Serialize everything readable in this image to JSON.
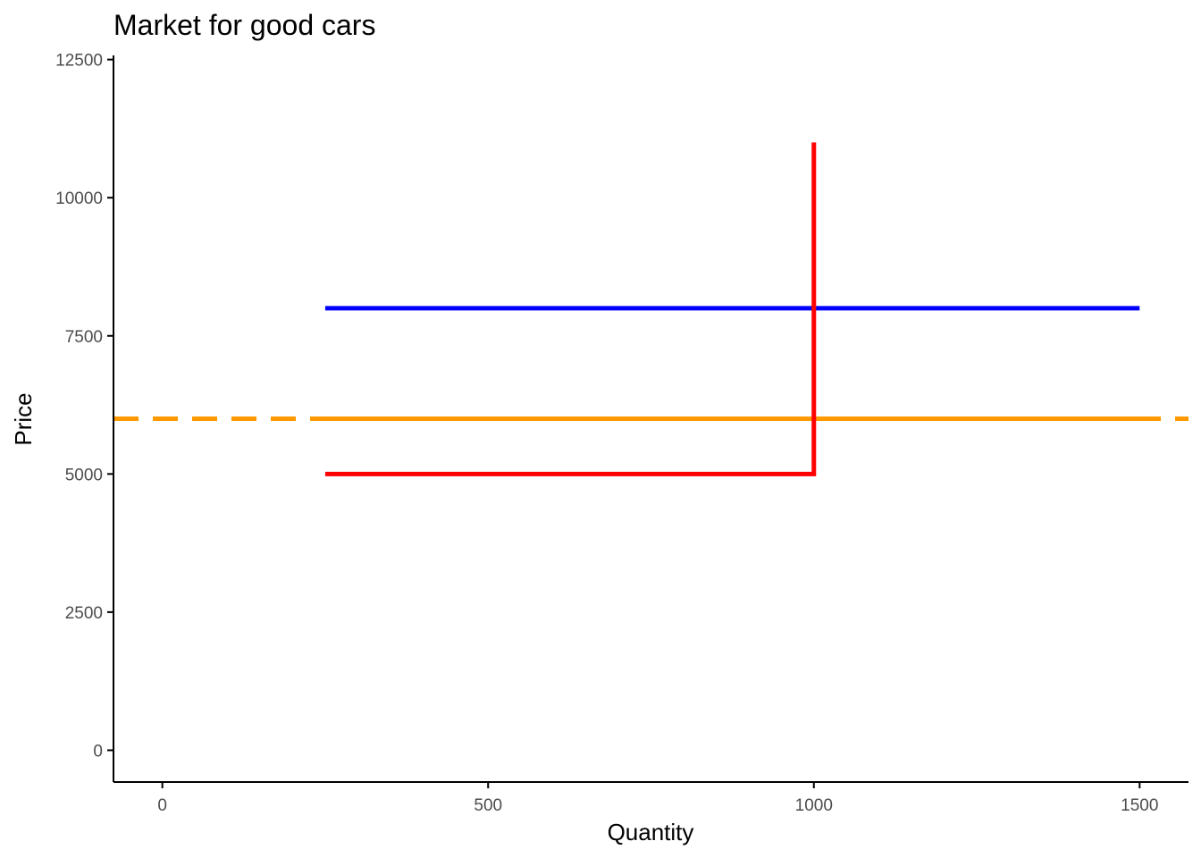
{
  "chart_data": {
    "type": "line",
    "title": "Market for good cars",
    "xlabel": "Quantity",
    "ylabel": "Price",
    "xlim": [
      -75,
      1575
    ],
    "ylim": [
      -575,
      12575
    ],
    "x_ticks": [
      0,
      500,
      1000,
      1500
    ],
    "y_ticks": [
      0,
      2500,
      5000,
      7500,
      10000,
      12500
    ],
    "x_tick_labels": [
      "0",
      "500",
      "1000",
      "1500"
    ],
    "y_tick_labels": [
      "0",
      "2500",
      "5000",
      "7500",
      "10000",
      "12500"
    ],
    "grid": false,
    "legend": "none",
    "series": [
      {
        "color": "#ff0000",
        "dash": "solid",
        "points": [
          [
            250,
            5000
          ],
          [
            1000,
            5000
          ],
          [
            1000,
            11000
          ]
        ]
      },
      {
        "color": "#0000ff",
        "dash": "solid",
        "points": [
          [
            250,
            8000
          ],
          [
            1500,
            8000
          ]
        ]
      },
      {
        "color": "#ff9900",
        "dash": "solid",
        "points": [
          [
            250,
            6000
          ],
          [
            1500,
            6000
          ]
        ]
      },
      {
        "color": "#ff9900",
        "dash": "dashed",
        "points": [
          [
            -75,
            6000
          ],
          [
            1575,
            6000
          ]
        ]
      }
    ]
  }
}
